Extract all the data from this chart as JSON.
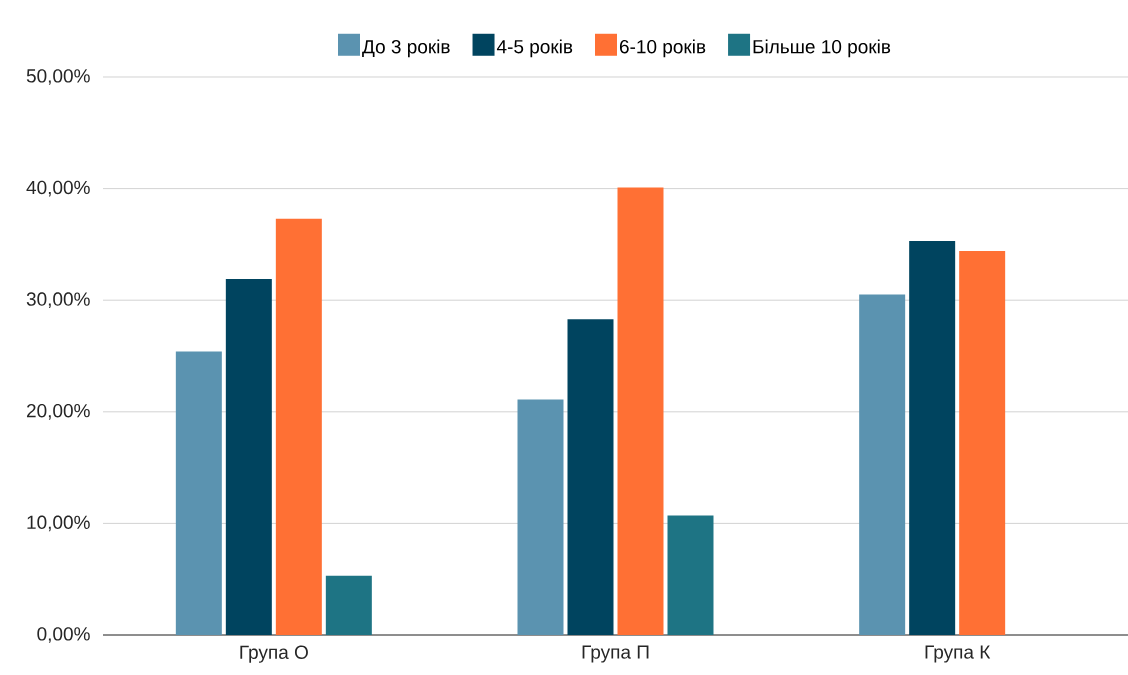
{
  "chart_data": {
    "type": "bar",
    "categories": [
      "Група О",
      "Група П",
      "Група К"
    ],
    "series": [
      {
        "name": "До 3 років",
        "color": "#5b93b0",
        "values": [
          25.4,
          21.1,
          30.5
        ]
      },
      {
        "name": "4-5 років",
        "color": "#00445f",
        "values": [
          31.9,
          28.3,
          35.3
        ]
      },
      {
        "name": "6-10 років",
        "color": "#ff7034",
        "values": [
          37.3,
          40.1,
          34.4
        ]
      },
      {
        "name": "Більше 10 років",
        "color": "#1e7484",
        "values": [
          5.3,
          10.7,
          null
        ]
      }
    ],
    "ylim": [
      0,
      50
    ],
    "yticks": [
      {
        "value": 0,
        "label": "0,00%"
      },
      {
        "value": 10,
        "label": "10,00%"
      },
      {
        "value": 20,
        "label": "20,00%"
      },
      {
        "value": 30,
        "label": "30,00%"
      },
      {
        "value": 40,
        "label": "40,00%"
      },
      {
        "value": 50,
        "label": "50,00%"
      }
    ],
    "grid": "y",
    "legend": "top"
  }
}
